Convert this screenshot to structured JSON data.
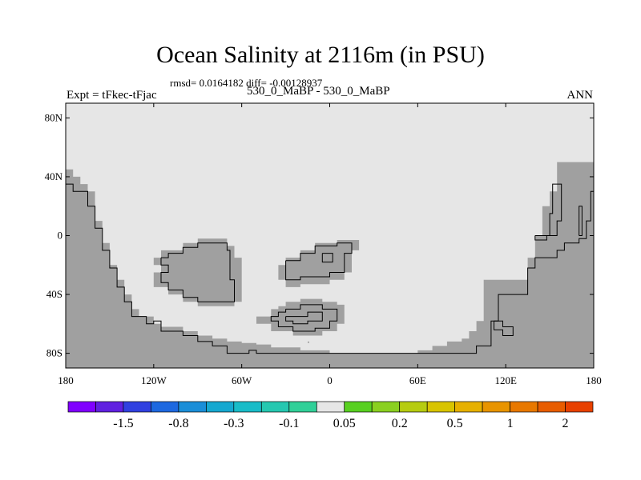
{
  "plot": {
    "title": "Ocean Salinity at 2116m (in PSU)",
    "stats": "rmsd= 0.0164182 diff= -0.00128937",
    "expt": "Expt = tFkec-tFjac",
    "subtitle": "530_0_MaBP - 530_0_MaBP",
    "season": "ANN"
  },
  "colors": {
    "ocean_fill": "#e6e6e6",
    "land_fill": "#a0a0a0",
    "coastline": "#000000"
  },
  "axes": {
    "lon_range": [
      -180,
      180
    ],
    "lat_range": [
      -90,
      90
    ],
    "lat_ticks": [
      {
        "value": 80,
        "label": "80N"
      },
      {
        "value": 40,
        "label": "40N"
      },
      {
        "value": 0,
        "label": "0"
      },
      {
        "value": -40,
        "label": "40S"
      },
      {
        "value": -80,
        "label": "80S"
      }
    ],
    "lon_ticks": [
      {
        "value": -180,
        "label": "180"
      },
      {
        "value": -120,
        "label": "120W"
      },
      {
        "value": -60,
        "label": "60W"
      },
      {
        "value": 0,
        "label": "0"
      },
      {
        "value": 60,
        "label": "60E"
      },
      {
        "value": 120,
        "label": "120E"
      },
      {
        "value": 180,
        "label": "180"
      }
    ]
  },
  "map_regions": [
    {
      "name": "land-region-west",
      "points": [
        [
          -180,
          90
        ],
        [
          -180,
          45
        ],
        [
          -175,
          45
        ],
        [
          -175,
          40
        ],
        [
          -170,
          40
        ],
        [
          -170,
          35
        ],
        [
          -165,
          35
        ],
        [
          -165,
          30
        ],
        [
          -160,
          30
        ],
        [
          -160,
          10
        ],
        [
          -155,
          10
        ],
        [
          -155,
          -5
        ],
        [
          -150,
          -5
        ],
        [
          -150,
          -20
        ],
        [
          -145,
          -20
        ],
        [
          -145,
          -30
        ],
        [
          -140,
          -30
        ],
        [
          -140,
          -40
        ],
        [
          -135,
          -40
        ],
        [
          -135,
          -50
        ],
        [
          -130,
          -50
        ],
        [
          -130,
          -55
        ],
        [
          -120,
          -55
        ],
        [
          -120,
          -60
        ],
        [
          -115,
          -60
        ],
        [
          -115,
          -62
        ],
        [
          -100,
          -62
        ],
        [
          -100,
          -65
        ],
        [
          -90,
          -65
        ],
        [
          -90,
          -68
        ],
        [
          -80,
          -68
        ],
        [
          -80,
          -70
        ],
        [
          -70,
          -70
        ],
        [
          -70,
          -72
        ],
        [
          -60,
          -72
        ],
        [
          -60,
          -73
        ],
        [
          -50,
          -73
        ],
        [
          -50,
          -74
        ],
        [
          -40,
          -74
        ],
        [
          -40,
          -76
        ],
        [
          -20,
          -76
        ],
        [
          -20,
          -78
        ],
        [
          0,
          -78
        ],
        [
          0,
          -80
        ],
        [
          60,
          -80
        ],
        [
          60,
          -78
        ],
        [
          70,
          -78
        ],
        [
          70,
          -75
        ],
        [
          80,
          -75
        ],
        [
          80,
          -72
        ],
        [
          90,
          -72
        ],
        [
          90,
          -70
        ],
        [
          95,
          -70
        ],
        [
          95,
          -65
        ],
        [
          100,
          -65
        ],
        [
          100,
          -58
        ],
        [
          105,
          -58
        ],
        [
          105,
          -30
        ],
        [
          135,
          -30
        ],
        [
          135,
          -15
        ],
        [
          140,
          -15
        ],
        [
          140,
          0
        ],
        [
          145,
          0
        ],
        [
          145,
          20
        ],
        [
          150,
          20
        ],
        [
          150,
          30
        ],
        [
          155,
          30
        ],
        [
          155,
          50
        ],
        [
          180,
          50
        ],
        [
          180,
          -90
        ],
        [
          -180,
          -90
        ]
      ]
    },
    {
      "name": "land-region-island-a",
      "points": [
        [
          -120,
          -15
        ],
        [
          -115,
          -15
        ],
        [
          -115,
          -10
        ],
        [
          -100,
          -10
        ],
        [
          -100,
          -5
        ],
        [
          -90,
          -5
        ],
        [
          -90,
          -2
        ],
        [
          -70,
          -2
        ],
        [
          -70,
          -7
        ],
        [
          -65,
          -7
        ],
        [
          -65,
          -15
        ],
        [
          -60,
          -15
        ],
        [
          -60,
          -30
        ],
        [
          -60,
          -45
        ],
        [
          -65,
          -45
        ],
        [
          -65,
          -48
        ],
        [
          -90,
          -48
        ],
        [
          -90,
          -45
        ],
        [
          -100,
          -45
        ],
        [
          -100,
          -40
        ],
        [
          -110,
          -40
        ],
        [
          -110,
          -35
        ],
        [
          -120,
          -35
        ],
        [
          -120,
          -25
        ],
        [
          -115,
          -25
        ],
        [
          -115,
          -20
        ],
        [
          -120,
          -20
        ]
      ]
    },
    {
      "name": "land-region-island-b",
      "points": [
        [
          -35,
          -20
        ],
        [
          -30,
          -20
        ],
        [
          -30,
          -15
        ],
        [
          -20,
          -15
        ],
        [
          -20,
          -10
        ],
        [
          -10,
          -10
        ],
        [
          -10,
          -5
        ],
        [
          5,
          -5
        ],
        [
          5,
          -3
        ],
        [
          20,
          -3
        ],
        [
          20,
          -10
        ],
        [
          15,
          -10
        ],
        [
          15,
          -25
        ],
        [
          10,
          -25
        ],
        [
          10,
          -30
        ],
        [
          0,
          -30
        ],
        [
          0,
          -33
        ],
        [
          -20,
          -33
        ],
        [
          -20,
          -35
        ],
        [
          -30,
          -35
        ],
        [
          -30,
          -30
        ],
        [
          -35,
          -30
        ]
      ]
    },
    {
      "name": "land-region-island-c",
      "points": [
        [
          -35,
          -48
        ],
        [
          -30,
          -48
        ],
        [
          -30,
          -45
        ],
        [
          -20,
          -45
        ],
        [
          -20,
          -43
        ],
        [
          -5,
          -43
        ],
        [
          -5,
          -45
        ],
        [
          5,
          -45
        ],
        [
          5,
          -47
        ],
        [
          10,
          -47
        ],
        [
          10,
          -60
        ],
        [
          5,
          -60
        ],
        [
          5,
          -65
        ],
        [
          -5,
          -65
        ],
        [
          -5,
          -68
        ],
        [
          -25,
          -68
        ],
        [
          -25,
          -65
        ],
        [
          -40,
          -65
        ],
        [
          -40,
          -60
        ],
        [
          -50,
          -60
        ],
        [
          -50,
          -55
        ],
        [
          -40,
          -55
        ],
        [
          -40,
          -50
        ],
        [
          -35,
          -50
        ]
      ]
    },
    {
      "name": "hatch-cell",
      "points": [
        [
          -15,
          -72
        ],
        [
          -14,
          -72
        ],
        [
          -14,
          -73
        ],
        [
          -15,
          -73
        ]
      ]
    }
  ],
  "contours": [
    {
      "name": "contour-west-coast",
      "points": [
        [
          -180,
          35
        ],
        [
          -175,
          35
        ],
        [
          -175,
          30
        ],
        [
          -165,
          30
        ],
        [
          -165,
          20
        ],
        [
          -160,
          20
        ],
        [
          -160,
          5
        ],
        [
          -155,
          5
        ],
        [
          -155,
          -10
        ],
        [
          -150,
          -10
        ],
        [
          -150,
          -22
        ],
        [
          -145,
          -22
        ],
        [
          -145,
          -35
        ],
        [
          -140,
          -35
        ],
        [
          -140,
          -45
        ],
        [
          -135,
          -45
        ],
        [
          -135,
          -55
        ],
        [
          -125,
          -55
        ],
        [
          -125,
          -60
        ],
        [
          -120,
          -60
        ],
        [
          -120,
          -58
        ],
        [
          -115,
          -58
        ],
        [
          -115,
          -65
        ],
        [
          -100,
          -65
        ],
        [
          -100,
          -68
        ],
        [
          -90,
          -68
        ],
        [
          -90,
          -72
        ],
        [
          -80,
          -72
        ],
        [
          -80,
          -75
        ],
        [
          -70,
          -75
        ],
        [
          -70,
          -80
        ],
        [
          -55,
          -80
        ],
        [
          -55,
          -78
        ],
        [
          -50,
          -78
        ],
        [
          -50,
          -80
        ],
        [
          100,
          -80
        ],
        [
          100,
          -75
        ],
        [
          110,
          -75
        ],
        [
          110,
          -58
        ],
        [
          115,
          -58
        ],
        [
          115,
          -40
        ],
        [
          135,
          -40
        ],
        [
          135,
          -22
        ],
        [
          140,
          -22
        ],
        [
          140,
          -15
        ],
        [
          155,
          -15
        ],
        [
          155,
          -10
        ],
        [
          160,
          -10
        ],
        [
          160,
          -5
        ],
        [
          170,
          -5
        ],
        [
          170,
          -2
        ],
        [
          175,
          -2
        ],
        [
          175,
          10
        ],
        [
          178,
          10
        ],
        [
          178,
          30
        ],
        [
          180,
          30
        ]
      ]
    },
    {
      "name": "contour-sw-loop",
      "points": [
        [
          112,
          -58
        ],
        [
          118,
          -58
        ],
        [
          118,
          -62
        ],
        [
          125,
          -62
        ],
        [
          125,
          -68
        ],
        [
          118,
          -68
        ],
        [
          118,
          -64
        ],
        [
          112,
          -64
        ],
        [
          112,
          -58
        ]
      ]
    },
    {
      "name": "contour-east-upper",
      "points": [
        [
          140,
          0
        ],
        [
          150,
          0
        ],
        [
          150,
          15
        ],
        [
          152,
          15
        ],
        [
          152,
          35
        ],
        [
          158,
          35
        ],
        [
          158,
          10
        ],
        [
          155,
          10
        ],
        [
          155,
          0
        ],
        [
          148,
          0
        ],
        [
          148,
          -3
        ],
        [
          140,
          -3
        ],
        [
          140,
          0
        ]
      ]
    },
    {
      "name": "contour-east-inner",
      "points": [
        [
          170,
          0
        ],
        [
          172,
          0
        ],
        [
          172,
          20
        ],
        [
          170,
          20
        ],
        [
          170,
          0
        ]
      ]
    },
    {
      "name": "contour-island-a",
      "points": [
        [
          -115,
          -15
        ],
        [
          -110,
          -15
        ],
        [
          -110,
          -12
        ],
        [
          -100,
          -12
        ],
        [
          -100,
          -8
        ],
        [
          -90,
          -8
        ],
        [
          -90,
          -5
        ],
        [
          -70,
          -5
        ],
        [
          -70,
          -10
        ],
        [
          -68,
          -10
        ],
        [
          -68,
          -30
        ],
        [
          -65,
          -30
        ],
        [
          -65,
          -45
        ],
        [
          -90,
          -45
        ],
        [
          -90,
          -42
        ],
        [
          -100,
          -42
        ],
        [
          -100,
          -37
        ],
        [
          -110,
          -37
        ],
        [
          -110,
          -32
        ],
        [
          -115,
          -32
        ],
        [
          -115,
          -25
        ],
        [
          -110,
          -25
        ],
        [
          -110,
          -20
        ],
        [
          -115,
          -20
        ],
        [
          -115,
          -15
        ]
      ]
    },
    {
      "name": "contour-island-b",
      "points": [
        [
          -30,
          -17
        ],
        [
          -20,
          -17
        ],
        [
          -20,
          -12
        ],
        [
          -10,
          -12
        ],
        [
          -10,
          -7
        ],
        [
          5,
          -7
        ],
        [
          5,
          -5
        ],
        [
          15,
          -5
        ],
        [
          15,
          -12
        ],
        [
          10,
          -12
        ],
        [
          10,
          -25
        ],
        [
          0,
          -25
        ],
        [
          0,
          -28
        ],
        [
          -20,
          -28
        ],
        [
          -20,
          -30
        ],
        [
          -30,
          -30
        ],
        [
          -30,
          -17
        ]
      ]
    },
    {
      "name": "contour-island-b-inner",
      "points": [
        [
          -5,
          -12
        ],
        [
          2,
          -12
        ],
        [
          2,
          -18
        ],
        [
          -5,
          -18
        ],
        [
          -5,
          -12
        ]
      ]
    },
    {
      "name": "contour-island-c",
      "points": [
        [
          -30,
          -50
        ],
        [
          -20,
          -50
        ],
        [
          -20,
          -47
        ],
        [
          -5,
          -47
        ],
        [
          -5,
          -50
        ],
        [
          5,
          -50
        ],
        [
          5,
          -58
        ],
        [
          0,
          -58
        ],
        [
          0,
          -63
        ],
        [
          -10,
          -63
        ],
        [
          -10,
          -65
        ],
        [
          -25,
          -65
        ],
        [
          -25,
          -62
        ],
        [
          -35,
          -62
        ],
        [
          -35,
          -58
        ],
        [
          -40,
          -58
        ],
        [
          -40,
          -55
        ],
        [
          -35,
          -55
        ],
        [
          -35,
          -52
        ],
        [
          -30,
          -52
        ],
        [
          -30,
          -50
        ]
      ]
    },
    {
      "name": "contour-island-c-inner",
      "points": [
        [
          -30,
          -55
        ],
        [
          -15,
          -55
        ],
        [
          -15,
          -52
        ],
        [
          -5,
          -52
        ],
        [
          -5,
          -58
        ],
        [
          -15,
          -58
        ],
        [
          -15,
          -60
        ],
        [
          -25,
          -60
        ],
        [
          -25,
          -58
        ],
        [
          -30,
          -58
        ],
        [
          -30,
          -55
        ]
      ]
    }
  ],
  "colorbar": {
    "colors": [
      "#8000ff",
      "#6020e0",
      "#3040e0",
      "#1d68e0",
      "#1a8ed8",
      "#15a8d0",
      "#18bcc8",
      "#25c8b0",
      "#30d098",
      "#e6e6e6",
      "#58d020",
      "#8ad020",
      "#b6cc10",
      "#d8c400",
      "#e6b000",
      "#e89400",
      "#e87800",
      "#e85c00",
      "#e84000"
    ],
    "labels": [
      "-1.5",
      "-0.8",
      "-0.3",
      "-0.1",
      "0.05",
      "0.2",
      "0.5",
      "1",
      "2"
    ]
  }
}
